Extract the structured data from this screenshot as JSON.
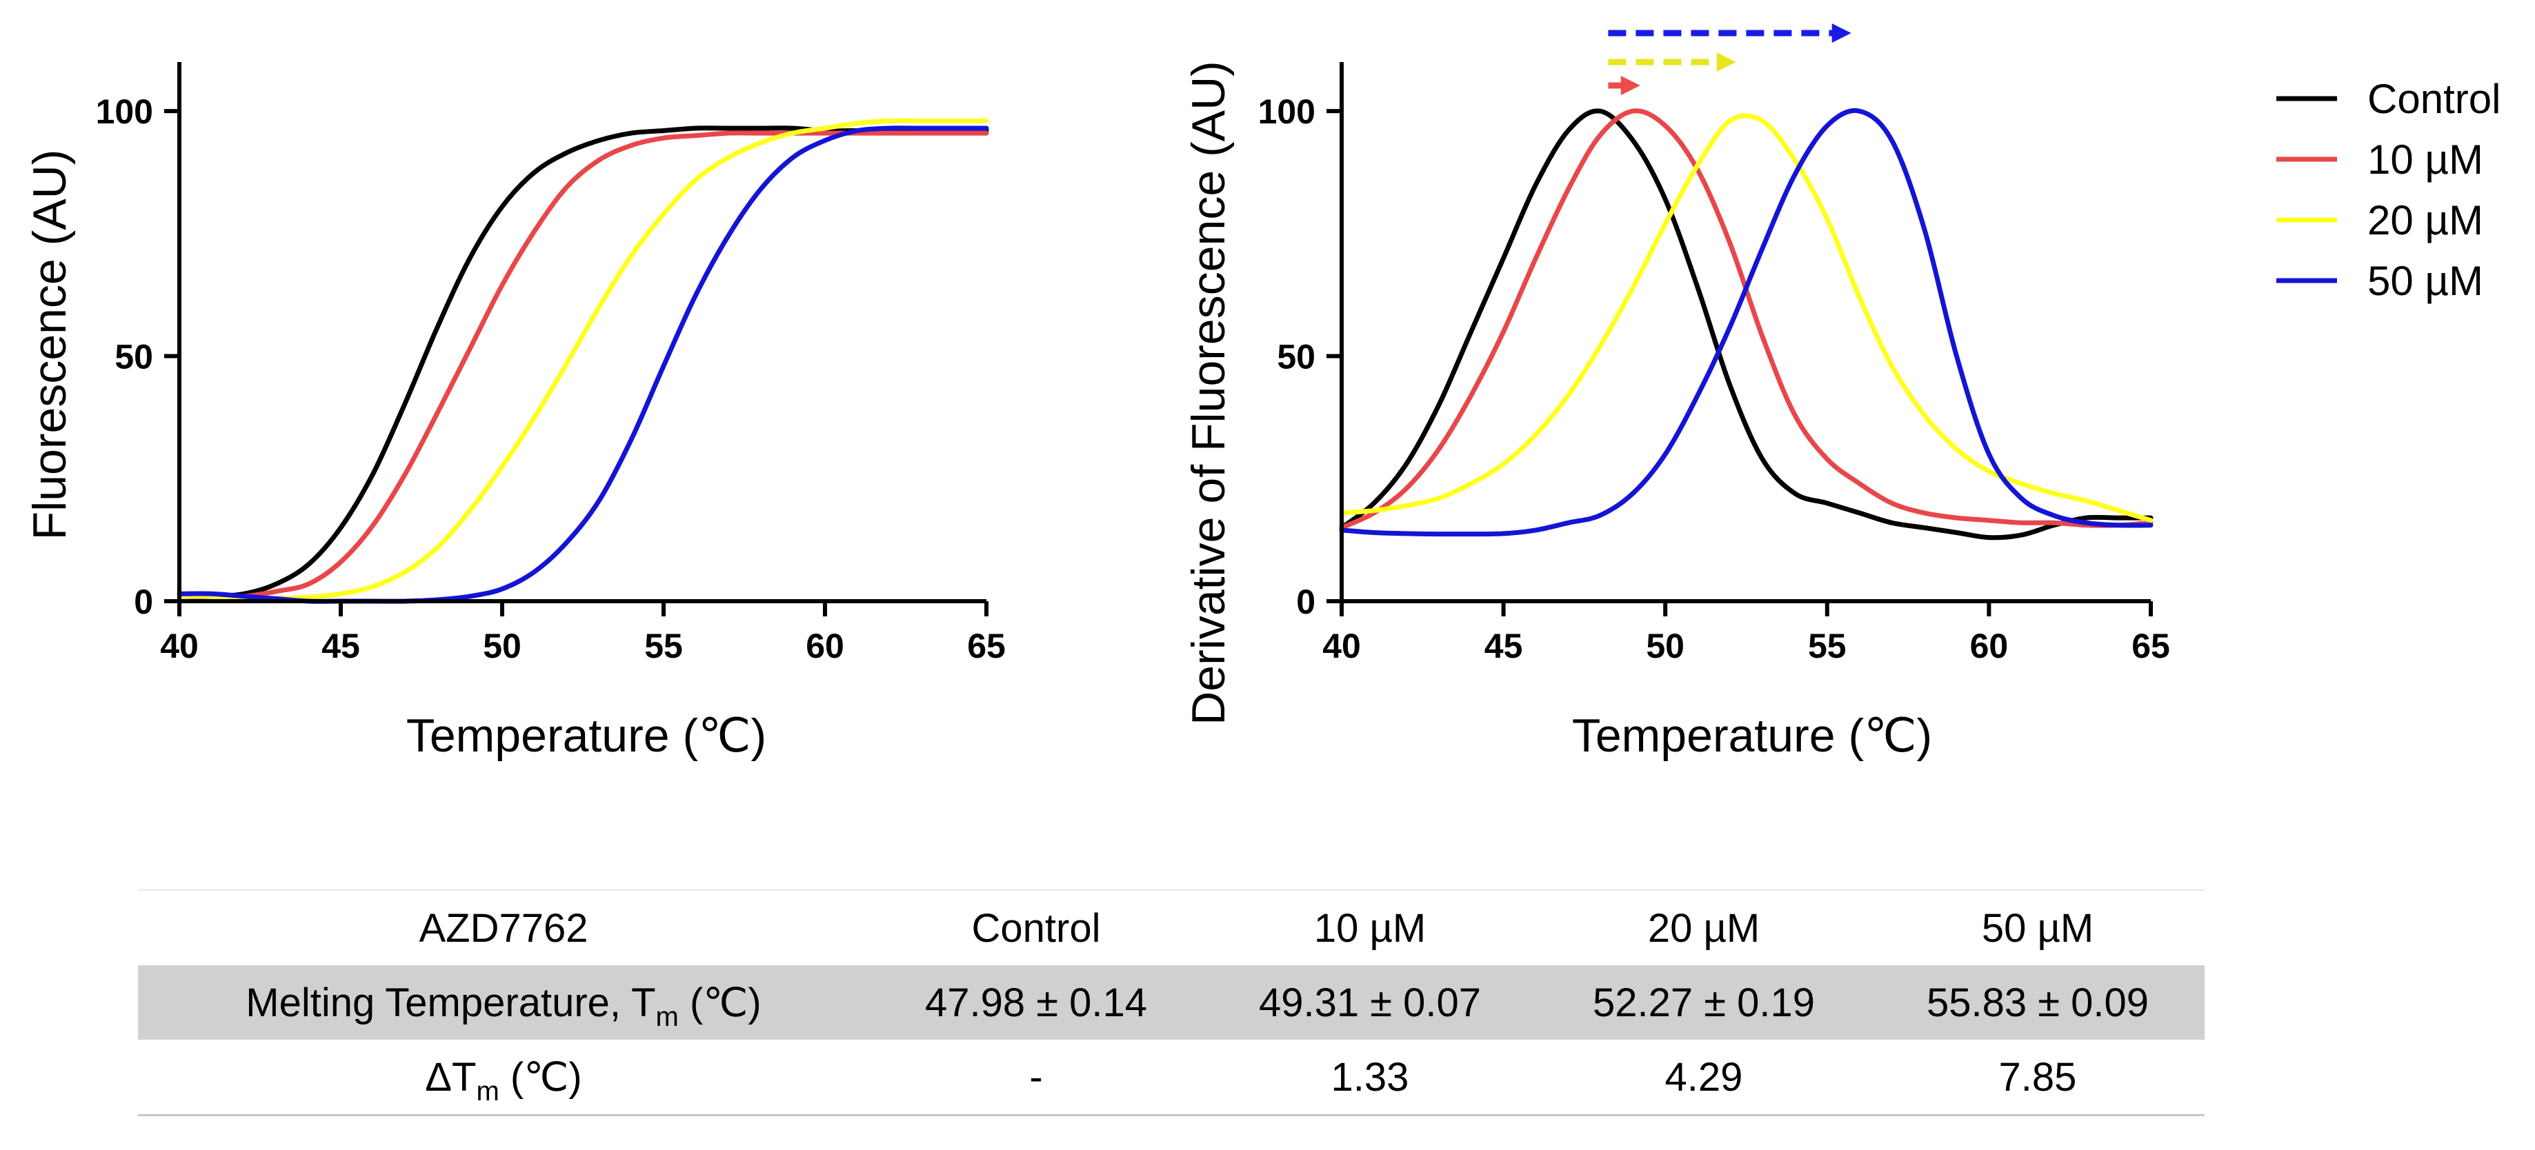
{
  "chart_data": [
    {
      "type": "line",
      "title": "",
      "xlabel": "Temperature (℃)",
      "ylabel": "Fluorescence (AU)",
      "xlim": [
        40,
        65
      ],
      "ylim": [
        0,
        110
      ],
      "xticks": [
        40,
        45,
        50,
        55,
        60,
        65
      ],
      "yticks": [
        0,
        50,
        100
      ],
      "grid": false,
      "x": [
        40,
        41,
        42,
        43,
        44,
        45,
        46,
        47,
        48,
        49,
        50,
        51,
        52,
        53,
        54,
        55,
        56,
        57,
        58,
        59,
        60,
        61,
        62,
        63,
        64,
        65
      ],
      "series": [
        {
          "name": "Control",
          "color": "#000000",
          "values": [
            1.0,
            1.0,
            1.5,
            3.5,
            7.5,
            15.0,
            26.0,
            40.5,
            56.0,
            70.0,
            80.5,
            87.5,
            91.5,
            94.0,
            95.5,
            96.0,
            96.5,
            96.5,
            96.5,
            96.5,
            96.0,
            96.0,
            96.0,
            96.0,
            96.0,
            96.0
          ]
        },
        {
          "name": "10 µM",
          "color": "#e8474a",
          "values": [
            1.0,
            1.0,
            1.0,
            2.0,
            3.5,
            8.0,
            15.5,
            26.0,
            38.5,
            51.5,
            64.5,
            75.5,
            84.5,
            90.0,
            93.0,
            94.5,
            95.0,
            95.5,
            95.5,
            95.5,
            95.5,
            95.5,
            95.5,
            95.5,
            95.5,
            95.5
          ]
        },
        {
          "name": "20 µM",
          "color": "#ffff1f",
          "values": [
            1.0,
            1.0,
            0.5,
            0.5,
            0.8,
            1.5,
            3.0,
            6.0,
            11.0,
            18.5,
            27.5,
            37.5,
            48.5,
            60.0,
            70.5,
            79.0,
            86.0,
            90.5,
            93.5,
            95.5,
            96.5,
            97.5,
            98.0,
            98.0,
            98.0,
            98.0
          ]
        },
        {
          "name": "50 µM",
          "color": "#1414d6",
          "values": [
            1.5,
            1.5,
            1.0,
            0.5,
            0.0,
            0.0,
            0.0,
            0.0,
            0.3,
            1.0,
            2.5,
            6.0,
            12.0,
            20.5,
            33.0,
            48.0,
            62.5,
            74.5,
            84.0,
            90.5,
            94.0,
            96.0,
            96.5,
            96.5,
            96.5,
            96.5
          ]
        }
      ]
    },
    {
      "type": "line",
      "title": "",
      "xlabel": "Temperature (℃)",
      "ylabel": "Derivative of Fluorescence (AU)",
      "xlim": [
        40,
        65
      ],
      "ylim": [
        0,
        110
      ],
      "xticks": [
        40,
        45,
        50,
        55,
        60,
        65
      ],
      "yticks": [
        0,
        50,
        100
      ],
      "grid": false,
      "legend": "right",
      "x": [
        40,
        41,
        42,
        43,
        44,
        45,
        46,
        47,
        47.98,
        49,
        50,
        51,
        52,
        53,
        54,
        55,
        56,
        57,
        58,
        59,
        60,
        61,
        62,
        63,
        64,
        65
      ],
      "series": [
        {
          "name": "Control",
          "color": "#000000",
          "values": [
            15,
            20,
            28,
            40,
            55,
            70,
            85,
            96,
            100,
            94,
            82,
            64,
            44,
            29,
            22,
            20,
            18,
            16,
            15,
            14,
            13,
            13.5,
            15.5,
            17,
            17,
            17
          ]
        },
        {
          "name": "10 µM",
          "color": "#e8474a",
          "values": [
            15,
            18,
            23,
            31,
            42,
            55,
            70,
            84,
            95,
            100,
            97,
            88,
            73,
            54,
            38,
            29,
            24,
            20,
            18,
            17,
            16.5,
            16,
            16,
            15.5,
            15.5,
            16
          ]
        },
        {
          "name": "20 µM",
          "color": "#ffff1f",
          "values": [
            18,
            18.5,
            19.5,
            21,
            24,
            28,
            34,
            42,
            52,
            64,
            77,
            89,
            98,
            98,
            90,
            78,
            62,
            48,
            38,
            31,
            26.5,
            24,
            22,
            20.5,
            18.5,
            16.5
          ]
        },
        {
          "name": "50 µM",
          "color": "#1414d6",
          "values": [
            14.5,
            14,
            13.8,
            13.7,
            13.7,
            13.8,
            14.5,
            16,
            17.5,
            22,
            30,
            42,
            56,
            72,
            87,
            97,
            100,
            94,
            76,
            50,
            30,
            21,
            17.5,
            16,
            15.5,
            15.5
          ]
        }
      ]
    }
  ],
  "shift_arrows": [
    {
      "series": "50 µM",
      "color": "#1a1ae6",
      "from_temp": 47.98,
      "to_temp": 55.83
    },
    {
      "series": "20 µM",
      "color": "#e6e61f",
      "from_temp": 47.98,
      "to_temp": 52.27
    },
    {
      "series": "10 µM",
      "color": "#ee4a4a",
      "from_temp": 47.98,
      "to_temp": 49.31
    }
  ],
  "table": {
    "header": [
      "AZD7762",
      "Control",
      "10 µM",
      "20 µM",
      "50 µM"
    ],
    "tm_label_main": "Melting Temperature, T",
    "tm_label_sub": "m",
    "tm_label_unit": " (℃)",
    "tm_values": [
      "47.98 ± 0.14",
      "49.31 ± 0.07",
      "52.27 ± 0.19",
      "55.83 ± 0.09"
    ],
    "dtm_label_main": "ΔT",
    "dtm_label_sub": "m",
    "dtm_label_unit": " (℃)",
    "dtm_values": [
      "-",
      "1.33",
      "4.29",
      "7.85"
    ]
  }
}
